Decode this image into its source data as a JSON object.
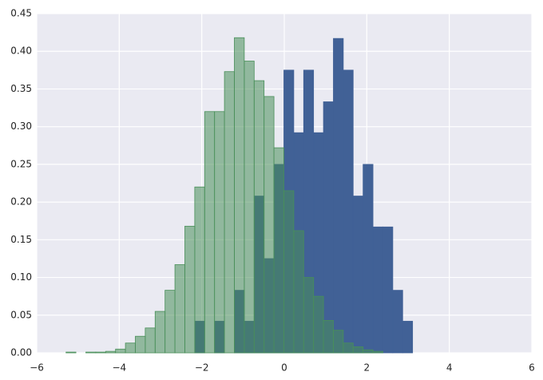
{
  "chart_data": {
    "type": "histogram",
    "background": "#eaeaf2",
    "grid": true,
    "xlim": [
      -6,
      6
    ],
    "ylim": [
      0,
      0.45
    ],
    "xticks": [
      {
        "value": -6,
        "label": "−6"
      },
      {
        "value": -4,
        "label": "−4"
      },
      {
        "value": -2,
        "label": "−2"
      },
      0,
      2,
      4,
      6
    ],
    "yticks": [
      {
        "value": 0,
        "label": "0.00"
      },
      {
        "value": 0.05,
        "label": "0.05"
      },
      {
        "value": 0.1,
        "label": "0.10"
      },
      {
        "value": 0.15,
        "label": "0.15"
      },
      {
        "value": 0.2,
        "label": "0.20"
      },
      {
        "value": 0.25,
        "label": "0.25"
      },
      {
        "value": 0.3,
        "label": "0.30"
      },
      {
        "value": 0.35,
        "label": "0.35"
      },
      {
        "value": 0.4,
        "label": "0.40"
      },
      {
        "value": 0.45,
        "label": "0.45"
      }
    ],
    "series": [
      {
        "color": "#4c72b0",
        "opacity": 1,
        "bins": [
          -2.17,
          -1.93,
          -1.69,
          -1.45,
          -1.21,
          -0.97,
          -0.73,
          -0.49,
          -0.25,
          -0.01,
          0.23,
          0.47,
          0.71,
          0.95,
          1.19,
          1.43,
          1.67,
          1.91,
          2.15,
          2.39,
          2.63,
          2.87,
          3.11
        ],
        "values": [
          0.042,
          0,
          0.042,
          0,
          0.083,
          0.042,
          0.208,
          0.125,
          0.25,
          0.375,
          0.292,
          0.375,
          0.292,
          0.333,
          0.417,
          0.375,
          0.208,
          0.25,
          0.167,
          0.167,
          0.083,
          0.042
        ]
      },
      {
        "color": "#55a868",
        "opacity": 0.55,
        "bins": [
          -5.77,
          -5.53,
          -5.29,
          -5.05,
          -4.81,
          -4.57,
          -4.33,
          -4.09,
          -3.85,
          -3.61,
          -3.37,
          -3.13,
          -2.89,
          -2.65,
          -2.41,
          -2.17,
          -1.93,
          -1.69,
          -1.45,
          -1.21,
          -0.97,
          -0.73,
          -0.49,
          -0.25,
          -0.01,
          0.23,
          0.47,
          0.71,
          0.95,
          1.19,
          1.43,
          1.67,
          1.91,
          2.15,
          2.39,
          2.63,
          2.87,
          3.11
        ],
        "values": [
          0,
          0,
          0.001,
          0,
          0.001,
          0.001,
          0.002,
          0.005,
          0.013,
          0.022,
          0.033,
          0.055,
          0.083,
          0.117,
          0.168,
          0.22,
          0.32,
          0.32,
          0.373,
          0.418,
          0.387,
          0.361,
          0.34,
          0.272,
          0.215,
          0.162,
          0.1,
          0.075,
          0.043,
          0.03,
          0.013,
          0.008,
          0.004,
          0.002,
          0,
          0,
          0
        ]
      }
    ]
  }
}
